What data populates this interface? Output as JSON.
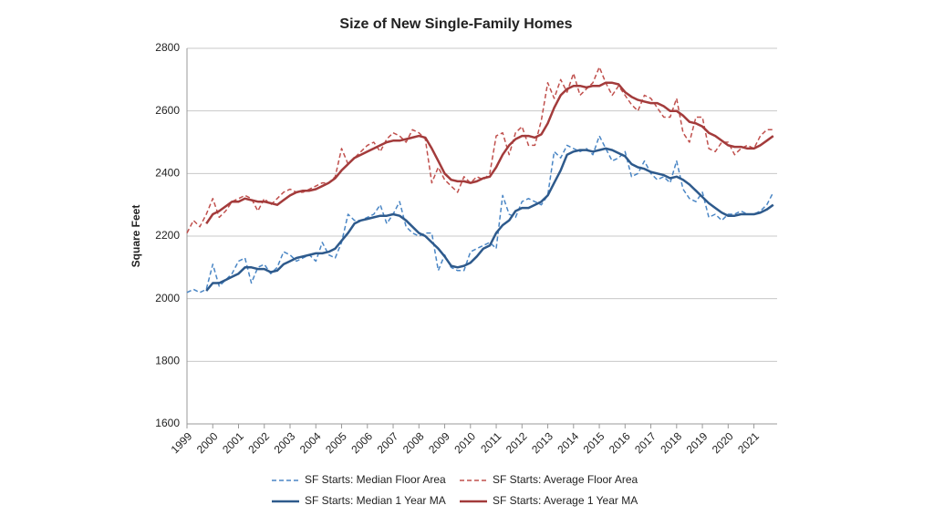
{
  "chart_data": {
    "type": "line",
    "title": "Size of New Single-Family Homes",
    "y_label": "Square Feet",
    "x": [
      1999,
      1999.25,
      1999.5,
      1999.75,
      2000,
      2000.25,
      2000.5,
      2000.75,
      2001,
      2001.25,
      2001.5,
      2001.75,
      2002,
      2002.25,
      2002.5,
      2002.75,
      2003,
      2003.25,
      2003.5,
      2003.75,
      2004,
      2004.25,
      2004.5,
      2004.75,
      2005,
      2005.25,
      2005.5,
      2005.75,
      2006,
      2006.25,
      2006.5,
      2006.75,
      2007,
      2007.25,
      2007.5,
      2007.75,
      2008,
      2008.25,
      2008.5,
      2008.75,
      2009,
      2009.25,
      2009.5,
      2009.75,
      2010,
      2010.25,
      2010.5,
      2010.75,
      2011,
      2011.25,
      2011.5,
      2011.75,
      2012,
      2012.25,
      2012.5,
      2012.75,
      2013,
      2013.25,
      2013.5,
      2013.75,
      2014,
      2014.25,
      2014.5,
      2014.75,
      2015,
      2015.25,
      2015.5,
      2015.75,
      2016,
      2016.25,
      2016.5,
      2016.75,
      2017,
      2017.25,
      2017.5,
      2017.75,
      2018,
      2018.25,
      2018.5,
      2018.75,
      2019,
      2019.25,
      2019.5,
      2019.75,
      2020,
      2020.25,
      2020.5,
      2020.75,
      2021,
      2021.25,
      2021.5,
      2021.75
    ],
    "series": [
      {
        "name": "SF Starts: Median Floor Area",
        "color": "#4a86c5",
        "dashed": true,
        "width": 1.5,
        "values": [
          2020,
          2030,
          2020,
          2030,
          2110,
          2040,
          2060,
          2080,
          2120,
          2130,
          2050,
          2100,
          2110,
          2080,
          2100,
          2150,
          2140,
          2120,
          2130,
          2140,
          2120,
          2180,
          2140,
          2130,
          2180,
          2270,
          2250,
          2250,
          2260,
          2270,
          2300,
          2240,
          2270,
          2310,
          2230,
          2210,
          2200,
          2210,
          2210,
          2090,
          2140,
          2100,
          2090,
          2090,
          2150,
          2160,
          2170,
          2180,
          2160,
          2330,
          2270,
          2260,
          2310,
          2320,
          2310,
          2300,
          2330,
          2470,
          2450,
          2490,
          2480,
          2470,
          2480,
          2460,
          2520,
          2480,
          2440,
          2450,
          2470,
          2390,
          2400,
          2440,
          2400,
          2380,
          2390,
          2370,
          2440,
          2350,
          2320,
          2310,
          2340,
          2260,
          2270,
          2250,
          2270,
          2270,
          2280,
          2270,
          2270,
          2280,
          2300,
          2340
        ]
      },
      {
        "name": "SF Starts: Average Floor Area",
        "color": "#c0504d",
        "dashed": true,
        "width": 1.5,
        "values": [
          2210,
          2250,
          2230,
          2270,
          2320,
          2260,
          2280,
          2310,
          2320,
          2330,
          2320,
          2280,
          2320,
          2300,
          2320,
          2340,
          2350,
          2340,
          2340,
          2350,
          2360,
          2370,
          2370,
          2390,
          2480,
          2430,
          2450,
          2470,
          2490,
          2500,
          2470,
          2510,
          2530,
          2520,
          2500,
          2540,
          2530,
          2510,
          2370,
          2420,
          2380,
          2360,
          2340,
          2390,
          2370,
          2390,
          2380,
          2400,
          2520,
          2530,
          2460,
          2530,
          2550,
          2490,
          2490,
          2570,
          2690,
          2640,
          2700,
          2660,
          2720,
          2650,
          2670,
          2690,
          2740,
          2690,
          2650,
          2680,
          2650,
          2620,
          2600,
          2650,
          2640,
          2610,
          2580,
          2580,
          2640,
          2530,
          2500,
          2580,
          2580,
          2480,
          2470,
          2500,
          2500,
          2460,
          2480,
          2490,
          2480,
          2520,
          2540,
          2540
        ]
      },
      {
        "name": "SF Starts: Median 1 Year MA",
        "color": "#2e5a8c",
        "dashed": false,
        "width": 2.5,
        "values": [
          null,
          null,
          null,
          2025,
          2050,
          2050,
          2060,
          2070,
          2080,
          2100,
          2100,
          2095,
          2095,
          2085,
          2090,
          2110,
          2120,
          2130,
          2135,
          2140,
          2145,
          2145,
          2150,
          2160,
          2185,
          2210,
          2240,
          2250,
          2255,
          2260,
          2265,
          2265,
          2270,
          2265,
          2250,
          2230,
          2210,
          2200,
          2180,
          2160,
          2135,
          2105,
          2100,
          2105,
          2115,
          2135,
          2160,
          2170,
          2210,
          2235,
          2250,
          2280,
          2290,
          2290,
          2300,
          2310,
          2330,
          2370,
          2410,
          2460,
          2470,
          2475,
          2475,
          2470,
          2475,
          2480,
          2475,
          2465,
          2455,
          2430,
          2420,
          2415,
          2405,
          2400,
          2395,
          2385,
          2390,
          2380,
          2365,
          2345,
          2325,
          2305,
          2290,
          2275,
          2265,
          2265,
          2270,
          2270,
          2270,
          2275,
          2285,
          2300
        ]
      },
      {
        "name": "SF Starts: Average 1 Year MA",
        "color": "#a33b3b",
        "dashed": false,
        "width": 2.5,
        "values": [
          null,
          null,
          null,
          2240,
          2270,
          2280,
          2295,
          2310,
          2310,
          2320,
          2315,
          2310,
          2310,
          2305,
          2300,
          2315,
          2330,
          2340,
          2345,
          2345,
          2350,
          2360,
          2370,
          2385,
          2410,
          2430,
          2450,
          2460,
          2470,
          2480,
          2490,
          2500,
          2505,
          2505,
          2510,
          2515,
          2520,
          2515,
          2480,
          2440,
          2400,
          2380,
          2375,
          2375,
          2370,
          2375,
          2385,
          2390,
          2420,
          2460,
          2490,
          2510,
          2520,
          2520,
          2515,
          2525,
          2560,
          2610,
          2650,
          2670,
          2680,
          2680,
          2675,
          2680,
          2680,
          2690,
          2690,
          2685,
          2660,
          2645,
          2635,
          2630,
          2625,
          2625,
          2615,
          2600,
          2600,
          2585,
          2565,
          2560,
          2550,
          2530,
          2520,
          2505,
          2490,
          2485,
          2485,
          2480,
          2480,
          2490,
          2505,
          2520
        ]
      }
    ],
    "xlim": [
      1999,
      2021.9
    ],
    "xticks": [
      1999,
      2000,
      2001,
      2002,
      2003,
      2004,
      2005,
      2006,
      2007,
      2008,
      2009,
      2010,
      2011,
      2012,
      2013,
      2014,
      2015,
      2016,
      2017,
      2018,
      2019,
      2020,
      2021
    ],
    "ylim": [
      1600,
      2800
    ],
    "yticks": [
      1600,
      1800,
      2000,
      2200,
      2400,
      2600,
      2800
    ],
    "grid": true,
    "legend": "bottom"
  }
}
